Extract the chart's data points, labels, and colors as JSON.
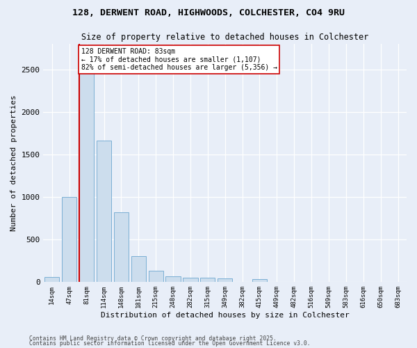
{
  "title_line1": "128, DERWENT ROAD, HIGHWOODS, COLCHESTER, CO4 9RU",
  "title_line2": "Size of property relative to detached houses in Colchester",
  "xlabel": "Distribution of detached houses by size in Colchester",
  "ylabel": "Number of detached properties",
  "categories": [
    "14sqm",
    "47sqm",
    "81sqm",
    "114sqm",
    "148sqm",
    "181sqm",
    "215sqm",
    "248sqm",
    "282sqm",
    "315sqm",
    "349sqm",
    "382sqm",
    "415sqm",
    "449sqm",
    "482sqm",
    "516sqm",
    "549sqm",
    "583sqm",
    "616sqm",
    "650sqm",
    "683sqm"
  ],
  "values": [
    55,
    1000,
    2490,
    1665,
    820,
    305,
    130,
    65,
    50,
    45,
    40,
    0,
    35,
    0,
    0,
    0,
    0,
    0,
    0,
    0,
    0
  ],
  "bar_color": "#ccdded",
  "bar_edge_color": "#7bafd4",
  "vline_color": "#cc0000",
  "vline_x_index": 2,
  "annotation_text": "128 DERWENT ROAD: 83sqm\n← 17% of detached houses are smaller (1,107)\n82% of semi-detached houses are larger (5,356) →",
  "annotation_box_color": "#ffffff",
  "annotation_box_edge": "#cc0000",
  "background_color": "#e8eef8",
  "plot_bg_color": "#e8eef8",
  "grid_color": "#ffffff",
  "footer_line1": "Contains HM Land Registry data © Crown copyright and database right 2025.",
  "footer_line2": "Contains public sector information licensed under the Open Government Licence v3.0.",
  "ylim": [
    0,
    2800
  ],
  "yticks": [
    0,
    500,
    1000,
    1500,
    2000,
    2500
  ]
}
